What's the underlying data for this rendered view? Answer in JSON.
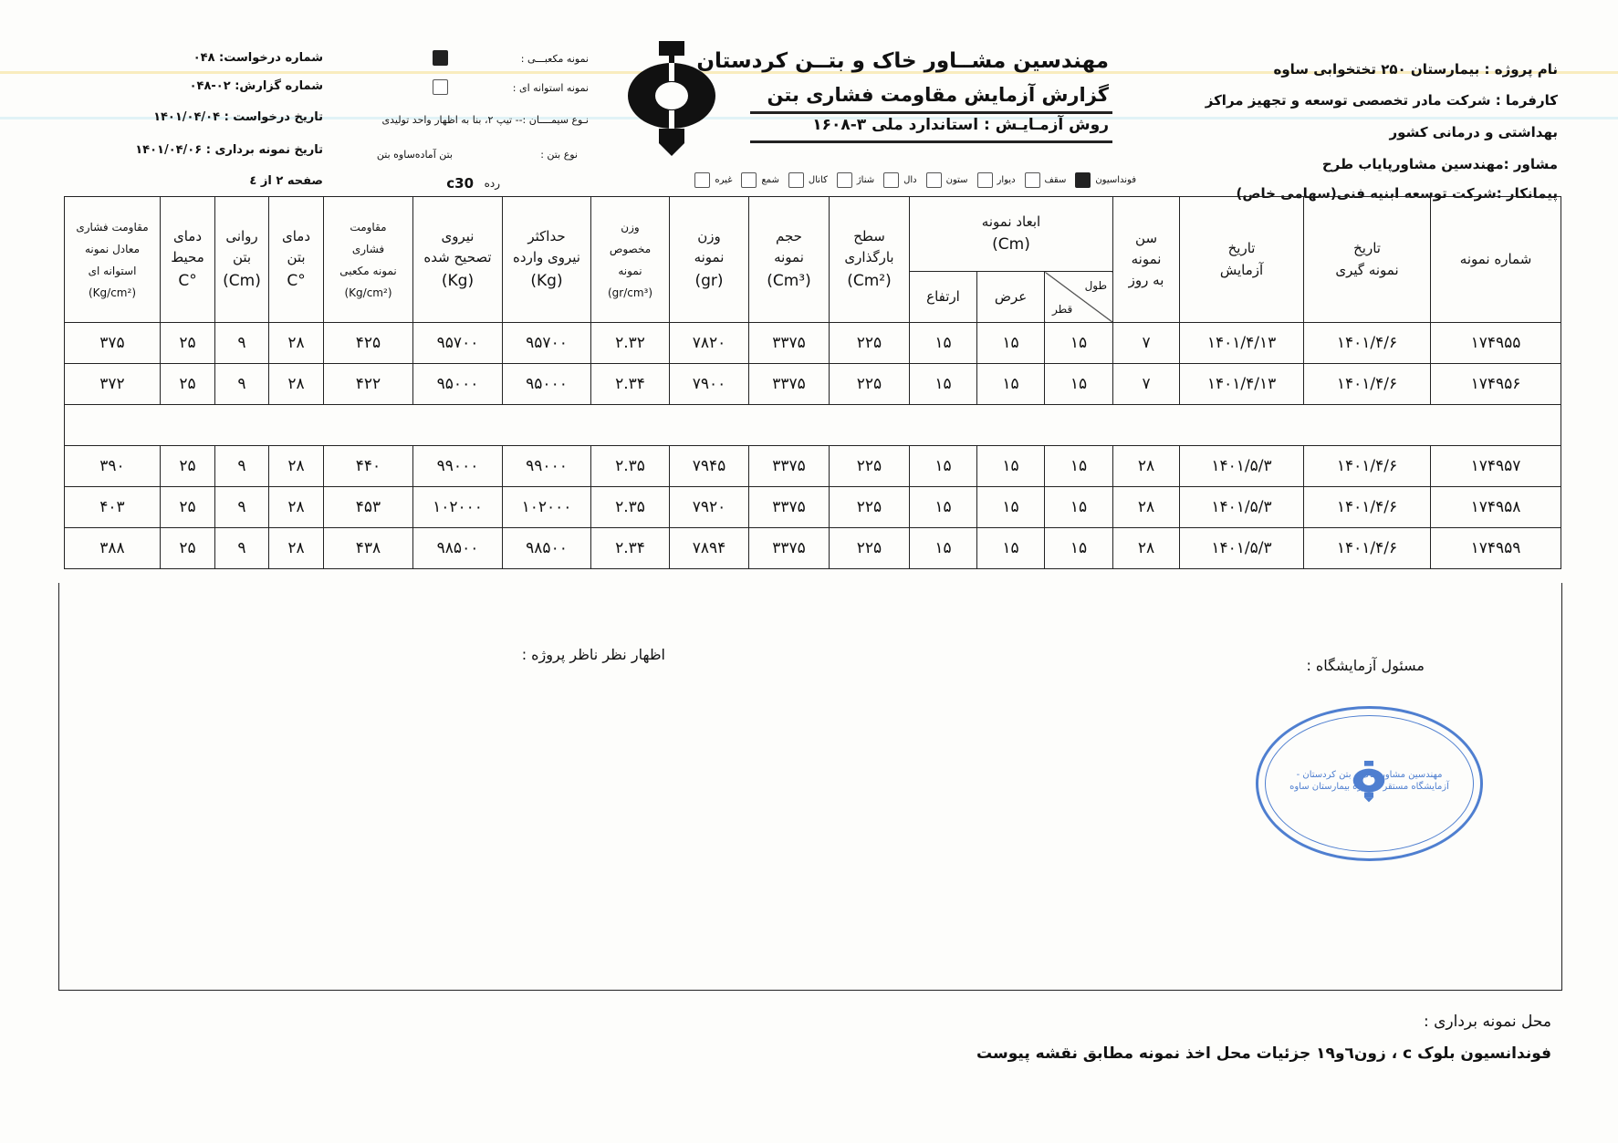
{
  "header_left": {
    "request_number": "شماره درخواست: ۰۴۸",
    "report_number": "شماره گزارش:  ۰۲-۰۴۸",
    "request_date": "تاریخ درخواست : ۱۴۰۱/۰۴/۰۴",
    "sampling_date": "تاریخ نمونه برداری : ۱۴۰۱/۰۴/۰۶",
    "page": "صفحه ۲ از ٤"
  },
  "header_mid": {
    "cube_label": "نمونه مکعبـــی :",
    "cube_checked": true,
    "cylinder_label": "نمونه استوانه ای :",
    "cylinder_checked": false,
    "cement_type": "نـوع سیمــــان :-- تیپ ۲، بنا به اظهار واحد تولیدی",
    "concrete_type_label": "نوع بتن :",
    "concrete_type_value": "بتن آماده‌ساوه بتن",
    "grade_label": "رده",
    "grade_value": "c30"
  },
  "titles": {
    "company": "مهندسین مشــاور خاک و بتــن کردستان",
    "report": "گزارش آزمایش مقاومت فشاری بتن",
    "method": "روش آزمـایـش : استاندارد ملی ۳-۱۶۰۸"
  },
  "elements": [
    {
      "label": "فونداسیون",
      "checked": true
    },
    {
      "label": "سقف",
      "checked": false
    },
    {
      "label": "دیوار",
      "checked": false
    },
    {
      "label": "ستون",
      "checked": false
    },
    {
      "label": "دال",
      "checked": false
    },
    {
      "label": "شناژ",
      "checked": false
    },
    {
      "label": "کانال",
      "checked": false
    },
    {
      "label": "شمع",
      "checked": false
    },
    {
      "label": "غیره",
      "checked": false
    }
  ],
  "header_right": {
    "project": "نام پروژه : بیمارستان ۲۵۰ تختخوابی ساوه",
    "employer_1": "کارفرما : شرکت مادر تخصصی توسعه و تجهیز مراکز",
    "employer_2": "بهداشتی و درمانی کشور",
    "consultant": "مشاور :مهندسین مشاورپایاب طرح",
    "contractor": "پیمانکار :شرکت توسعه ابنیه فنی(سهامی خاص)"
  },
  "table": {
    "headers": {
      "sample_no": "شماره نمونه",
      "sampling_date": [
        "تاریخ",
        "نمونه گیری"
      ],
      "test_date": [
        "تاریخ",
        "آزمایش"
      ],
      "age": [
        "سن",
        "نمونه",
        "به روز"
      ],
      "dims": [
        "ابعاد نمونه",
        "(Cm)"
      ],
      "length": "طول",
      "diameter": "قطر",
      "width": "عرض",
      "height": "ارتفاع",
      "area": [
        "سطح",
        "بارگذاری",
        "(Cm²)"
      ],
      "volume": [
        "حجم",
        "نمونه",
        "(Cm³)"
      ],
      "weight": [
        "وزن",
        "نمونه",
        "(gr)"
      ],
      "density": [
        "وزن",
        "مخصوص",
        "نمونه",
        "(gr/cm³)"
      ],
      "max_force": [
        "حداکثر",
        "نیروی وارده",
        "(Kg)"
      ],
      "corrected_force": [
        "نیروی",
        "تصحیح شده",
        "(Kg)"
      ],
      "cube_strength": [
        "مقاومت",
        "فشاری",
        "نمونه مکعبی",
        "(Kg/cm²)"
      ],
      "concrete_temp": [
        "دمای",
        "بتن",
        "°C"
      ],
      "slump": [
        "روانی",
        "بتن",
        "(Cm)"
      ],
      "ambient_temp": [
        "دمای",
        "محیط",
        "°C"
      ],
      "cyl_strength": [
        "مقاومت فشاری",
        "معادل نمونه",
        "استوانه ای",
        "(Kg/cm²)"
      ]
    },
    "rows": [
      [
        "۱۷۴۹۵۵",
        "۱۴۰۱/۴/۶",
        "۱۴۰۱/۴/۱۳",
        "۷",
        "۱۵",
        "۱۵",
        "۱۵",
        "۲۲۵",
        "۳۳۷۵",
        "۷۸۲۰",
        "۲.۳۲",
        "۹۵۷۰۰",
        "۹۵۷۰۰",
        "۴۲۵",
        "۲۸",
        "۹",
        "۲۵",
        "۳۷۵"
      ],
      [
        "۱۷۴۹۵۶",
        "۱۴۰۱/۴/۶",
        "۱۴۰۱/۴/۱۳",
        "۷",
        "۱۵",
        "۱۵",
        "۱۵",
        "۲۲۵",
        "۳۳۷۵",
        "۷۹۰۰",
        "۲.۳۴",
        "۹۵۰۰۰",
        "۹۵۰۰۰",
        "۴۲۲",
        "۲۸",
        "۹",
        "۲۵",
        "۳۷۲"
      ],
      [
        "۱۷۴۹۵۷",
        "۱۴۰۱/۴/۶",
        "۱۴۰۱/۵/۳",
        "۲۸",
        "۱۵",
        "۱۵",
        "۱۵",
        "۲۲۵",
        "۳۳۷۵",
        "۷۹۴۵",
        "۲.۳۵",
        "۹۹۰۰۰",
        "۹۹۰۰۰",
        "۴۴۰",
        "۲۸",
        "۹",
        "۲۵",
        "۳۹۰"
      ],
      [
        "۱۷۴۹۵۸",
        "۱۴۰۱/۴/۶",
        "۱۴۰۱/۵/۳",
        "۲۸",
        "۱۵",
        "۱۵",
        "۱۵",
        "۲۲۵",
        "۳۳۷۵",
        "۷۹۲۰",
        "۲.۳۵",
        "۱۰۲۰۰۰",
        "۱۰۲۰۰۰",
        "۴۵۳",
        "۲۸",
        "۹",
        "۲۵",
        "۴۰۳"
      ],
      [
        "۱۷۴۹۵۹",
        "۱۴۰۱/۴/۶",
        "۱۴۰۱/۵/۳",
        "۲۸",
        "۱۵",
        "۱۵",
        "۱۵",
        "۲۲۵",
        "۳۳۷۵",
        "۷۸۹۴",
        "۲.۳۴",
        "۹۸۵۰۰",
        "۹۸۵۰۰",
        "۴۳۸",
        "۲۸",
        "۹",
        "۲۵",
        "۳۸۸"
      ]
    ]
  },
  "footer": {
    "supervisor_comment": "اظهار نظر ناظر پروژه :",
    "lab_manager": "مسئول آزمایشگاه :",
    "stamp_text": "مهندسین مشاور خاک و بتن کردستان - آزمایشگاه مستقر - پروژه بیمارستان ساوه",
    "sampling_location_label": "محل نمونه برداری :",
    "sampling_location": "فوندانسیون بلوک c ، زون٦و۱۹ جزئیات محل اخذ نمونه مطابق نقشه پیوست"
  },
  "colors": {
    "stamp": "#4f7fd0",
    "ink": "#111111"
  }
}
